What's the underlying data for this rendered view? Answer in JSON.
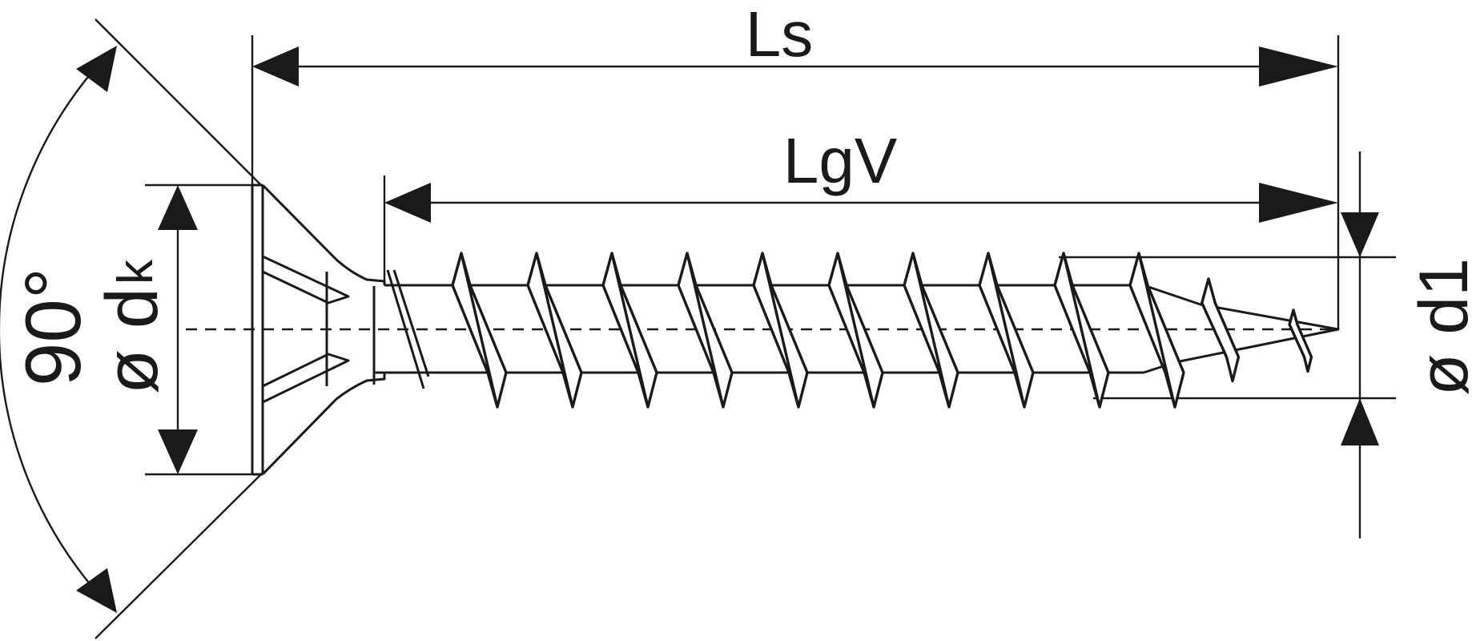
{
  "labels": {
    "overall_length": "Ls",
    "thread_length": "LgV",
    "head_angle": "90°",
    "head_diameter_prefix": "ø d",
    "head_diameter_subscript": "k",
    "thread_diameter": "ø d1"
  },
  "colors": {
    "line": "#1a1a1a",
    "background": "#ffffff"
  }
}
